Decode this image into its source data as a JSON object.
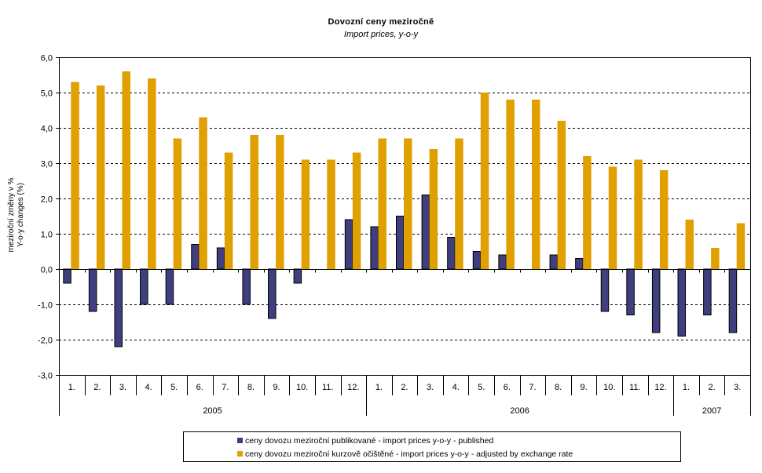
{
  "chart_data": {
    "type": "bar",
    "title": "Dovozní ceny meziročně",
    "subtitle": "Import prices, y-o-y",
    "ylabel_cz": "meziroční změny v %",
    "ylabel_en": "Y-o-y changes (%)",
    "xlabel": "",
    "ylim": [
      -3.0,
      6.0
    ],
    "ytick_step": 1.0,
    "yticks": [
      "6,0",
      "5,0",
      "4,0",
      "3,0",
      "2,0",
      "1,0",
      "0,0",
      "-1,0",
      "-2,0",
      "-3,0"
    ],
    "grid": "horizontal-dashed",
    "legend_position": "bottom",
    "categories": [
      "1.",
      "2.",
      "3.",
      "4.",
      "5.",
      "6.",
      "7.",
      "8.",
      "9.",
      "10.",
      "11.",
      "12.",
      "1.",
      "2.",
      "3.",
      "4.",
      "5.",
      "6.",
      "7.",
      "8.",
      "9.",
      "10.",
      "11.",
      "12.",
      "1.",
      "2.",
      "3."
    ],
    "year_groups": [
      {
        "label": "2005",
        "count": 12
      },
      {
        "label": "2006",
        "count": 12
      },
      {
        "label": "2007",
        "count": 3
      }
    ],
    "series": [
      {
        "name": "ceny dovozu meziroční publikované - import prices y-o-y - published",
        "color": "#3F3F7F",
        "values": [
          -0.4,
          -1.2,
          -2.2,
          -1.0,
          -1.0,
          0.7,
          0.6,
          -1.0,
          -1.4,
          -0.4,
          0.0,
          1.4,
          1.2,
          1.5,
          2.1,
          0.9,
          0.5,
          0.4,
          0.0,
          0.4,
          0.3,
          -1.2,
          -1.3,
          -1.8,
          -1.9,
          -1.3,
          -1.8
        ]
      },
      {
        "name": "ceny dovozu meziroční kurzově očištěné - import prices y-o-y - adjusted by exchange rate",
        "color": "#E0A000",
        "values": [
          5.3,
          5.2,
          5.6,
          5.4,
          3.7,
          4.3,
          3.3,
          3.8,
          3.8,
          3.1,
          3.1,
          3.3,
          3.7,
          3.7,
          3.4,
          3.7,
          5.0,
          4.8,
          4.8,
          4.2,
          3.2,
          2.9,
          3.1,
          2.8,
          1.4,
          0.6,
          1.3
        ]
      }
    ]
  }
}
